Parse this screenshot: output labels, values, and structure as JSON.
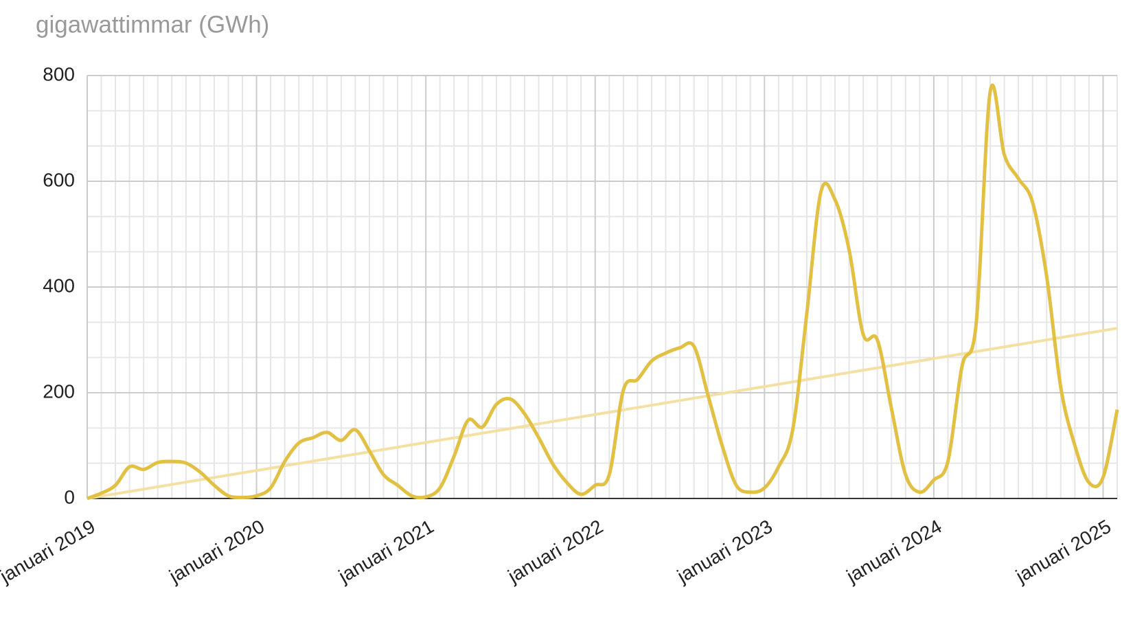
{
  "chart_data": {
    "type": "line",
    "title": "gigawattimmar (GWh)",
    "categories": [
      "januari 2019",
      null,
      null,
      null,
      null,
      null,
      null,
      null,
      null,
      null,
      null,
      null,
      "januari 2020",
      null,
      null,
      null,
      null,
      null,
      null,
      null,
      null,
      null,
      null,
      null,
      "januari 2021",
      null,
      null,
      null,
      null,
      null,
      null,
      null,
      null,
      null,
      null,
      null,
      "januari 2022",
      null,
      null,
      null,
      null,
      null,
      null,
      null,
      null,
      null,
      null,
      null,
      "januari 2023",
      null,
      null,
      null,
      null,
      null,
      null,
      null,
      null,
      null,
      null,
      null,
      "januari 2024",
      null,
      null,
      null,
      null,
      null,
      null,
      null,
      null,
      null,
      null,
      null,
      "januari 2025",
      null
    ],
    "series": [
      {
        "color": "#e2c044",
        "width": 5,
        "values": [
          0,
          10,
          25,
          60,
          55,
          68,
          70,
          67,
          50,
          25,
          5,
          2,
          5,
          20,
          70,
          105,
          115,
          125,
          110,
          130,
          90,
          45,
          25,
          5,
          3,
          20,
          80,
          148,
          135,
          178,
          188,
          160,
          115,
          65,
          30,
          8,
          25,
          45,
          205,
          225,
          260,
          275,
          285,
          288,
          195,
          100,
          25,
          12,
          20,
          60,
          130,
          350,
          580,
          565,
          470,
          310,
          300,
          170,
          45,
          12,
          35,
          70,
          250,
          330,
          770,
          650,
          605,
          560,
          420,
          210,
          100,
          30,
          40,
          168
        ]
      },
      {
        "color": "#f5e0a3",
        "width": 4,
        "values": [
          0,
          4.4,
          8.8,
          13.2,
          17.6,
          22.1,
          26.5,
          30.9,
          35.3,
          39.7,
          44.1,
          48.5,
          52.9,
          57.3,
          61.8,
          66.2,
          70.6,
          75,
          79.4,
          83.8,
          88.2,
          92.6,
          97,
          101.5,
          105.9,
          110.3,
          114.7,
          119.1,
          123.5,
          127.9,
          132.3,
          136.7,
          141.2,
          145.6,
          150,
          154.4,
          158.8,
          163.2,
          167.6,
          172,
          176.4,
          180.8,
          185.3,
          189.7,
          194.1,
          198.5,
          202.9,
          207.3,
          211.7,
          216.1,
          220.5,
          225,
          229.4,
          233.8,
          238.2,
          242.6,
          247,
          251.4,
          255.8,
          260.2,
          264.7,
          269.1,
          273.5,
          277.9,
          282.3,
          286.7,
          291.1,
          295.5,
          299.9,
          304.4,
          308.8,
          313.2,
          317.6,
          322
        ]
      }
    ],
    "ylim": [
      0,
      800
    ],
    "yticks": [
      0,
      200,
      400,
      600,
      800
    ],
    "grid": true,
    "minor_grid": 3
  }
}
